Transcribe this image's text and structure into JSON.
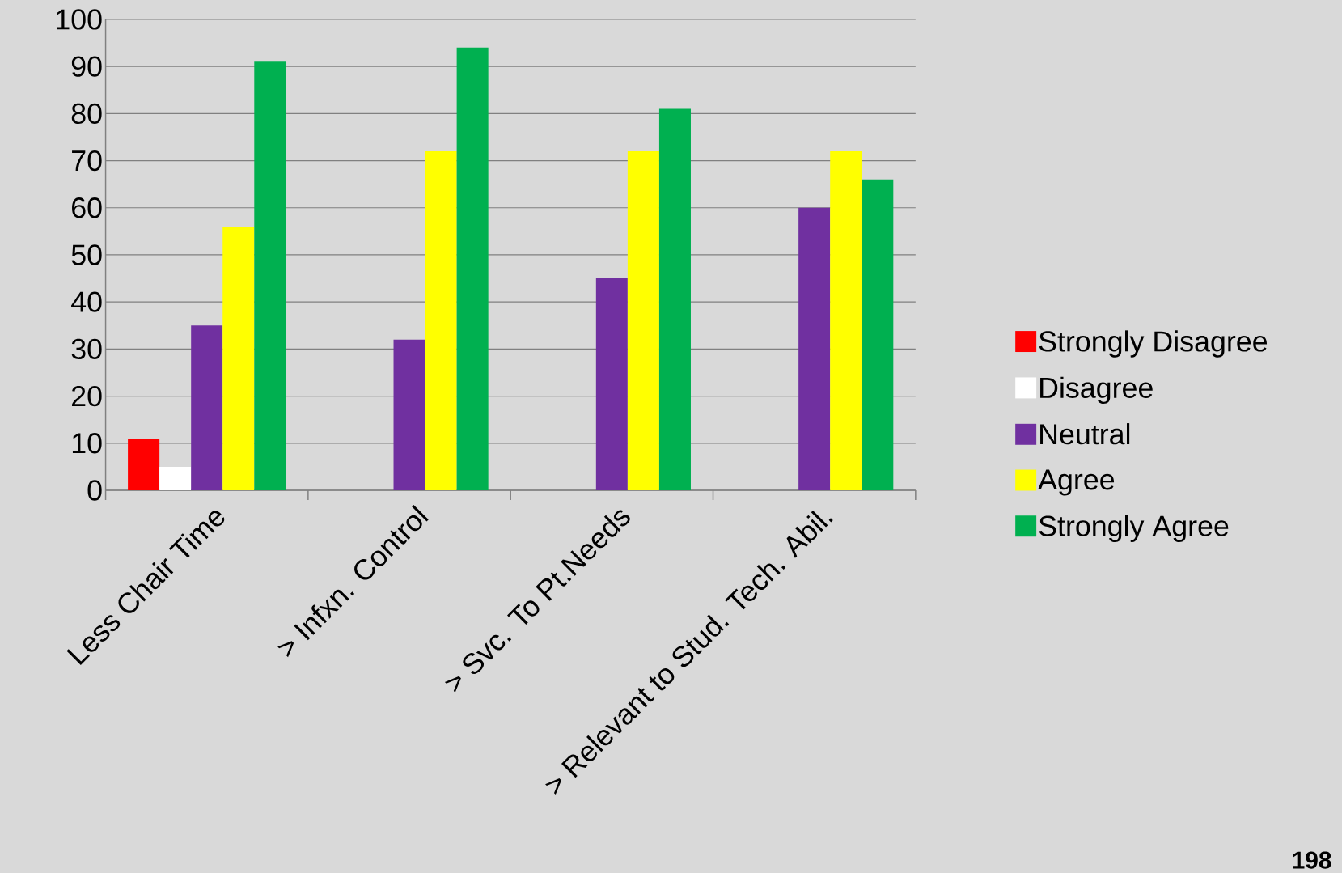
{
  "chart_data": {
    "type": "bar",
    "categories": [
      "Less Chair Time",
      "> Infxn. Control",
      "> Svc. To Pt.Needs",
      "> Relevant to Stud. Tech. Abil."
    ],
    "series": [
      {
        "name": "Strongly Disagree",
        "color": "#ff0000",
        "values": [
          11,
          0,
          0,
          0
        ]
      },
      {
        "name": "Disagree",
        "color": "#ffffff",
        "values": [
          5,
          0,
          0,
          0
        ]
      },
      {
        "name": "Neutral",
        "color": "#7030a0",
        "values": [
          35,
          32,
          45,
          60
        ]
      },
      {
        "name": "Agree",
        "color": "#ffff00",
        "values": [
          56,
          72,
          72,
          72
        ]
      },
      {
        "name": "Strongly Agree",
        "color": "#00b050",
        "values": [
          91,
          94,
          81,
          66
        ]
      }
    ],
    "ylim": [
      0,
      100
    ],
    "yticks": [
      0,
      10,
      20,
      30,
      40,
      50,
      60,
      70,
      80,
      90,
      100
    ],
    "grid": "y",
    "legend": "right",
    "annotations": [
      "198"
    ]
  }
}
